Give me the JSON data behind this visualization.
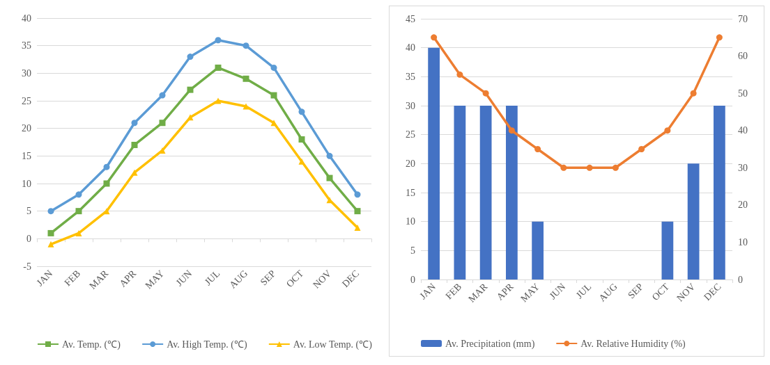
{
  "chart_data": [
    {
      "type": "line",
      "categories": [
        "JAN",
        "FEB",
        "MAR",
        "APR",
        "MAY",
        "JUN",
        "JUL",
        "AUG",
        "SEP",
        "OCT",
        "NOV",
        "DEC"
      ],
      "ylim": [
        -5,
        40
      ],
      "yticks": [
        -5,
        0,
        5,
        10,
        15,
        20,
        25,
        30,
        35,
        40
      ],
      "grid": "y",
      "legend": "bottom",
      "series": [
        {
          "name": "Av. Temp. (℃)",
          "color": "#70ad47",
          "marker": "square",
          "values": [
            1,
            5,
            10,
            17,
            21,
            27,
            31,
            29,
            26,
            18,
            11,
            5
          ]
        },
        {
          "name": "Av. High Temp. (℃)",
          "color": "#5b9bd5",
          "marker": "circle",
          "values": [
            5,
            8,
            13,
            21,
            26,
            33,
            36,
            35,
            31,
            23,
            15,
            8
          ]
        },
        {
          "name": "Av. Low Temp. (℃)",
          "color": "#ffc000",
          "marker": "triangle",
          "values": [
            -1,
            1,
            5,
            12,
            16,
            22,
            25,
            24,
            21,
            14,
            7,
            2
          ]
        }
      ]
    },
    {
      "type": "bar",
      "categories": [
        "JAN",
        "FEB",
        "MAR",
        "APR",
        "MAY",
        "JUN",
        "JUL",
        "AUG",
        "SEP",
        "OCT",
        "NOV",
        "DEC"
      ],
      "ylim": [
        0,
        45
      ],
      "yticks": [
        0,
        5,
        10,
        15,
        20,
        25,
        30,
        35,
        40,
        45
      ],
      "y2lim": [
        0,
        70
      ],
      "y2ticks": [
        0,
        10,
        20,
        30,
        40,
        50,
        60,
        70
      ],
      "grid": "y",
      "legend": "bottom",
      "series": [
        {
          "name": "Av. Precipitation (mm)",
          "color": "#4472c4",
          "values": [
            40,
            30,
            30,
            30,
            10,
            0,
            0,
            0,
            0,
            10,
            20,
            30
          ]
        },
        {
          "name": "Av. Relative Humidity (%)",
          "type": "line",
          "axis": "y2",
          "marker": "circle",
          "color": "#ed7d31",
          "values": [
            65,
            55,
            50,
            40,
            35,
            30,
            30,
            30,
            35,
            40,
            50,
            65
          ]
        }
      ]
    }
  ]
}
